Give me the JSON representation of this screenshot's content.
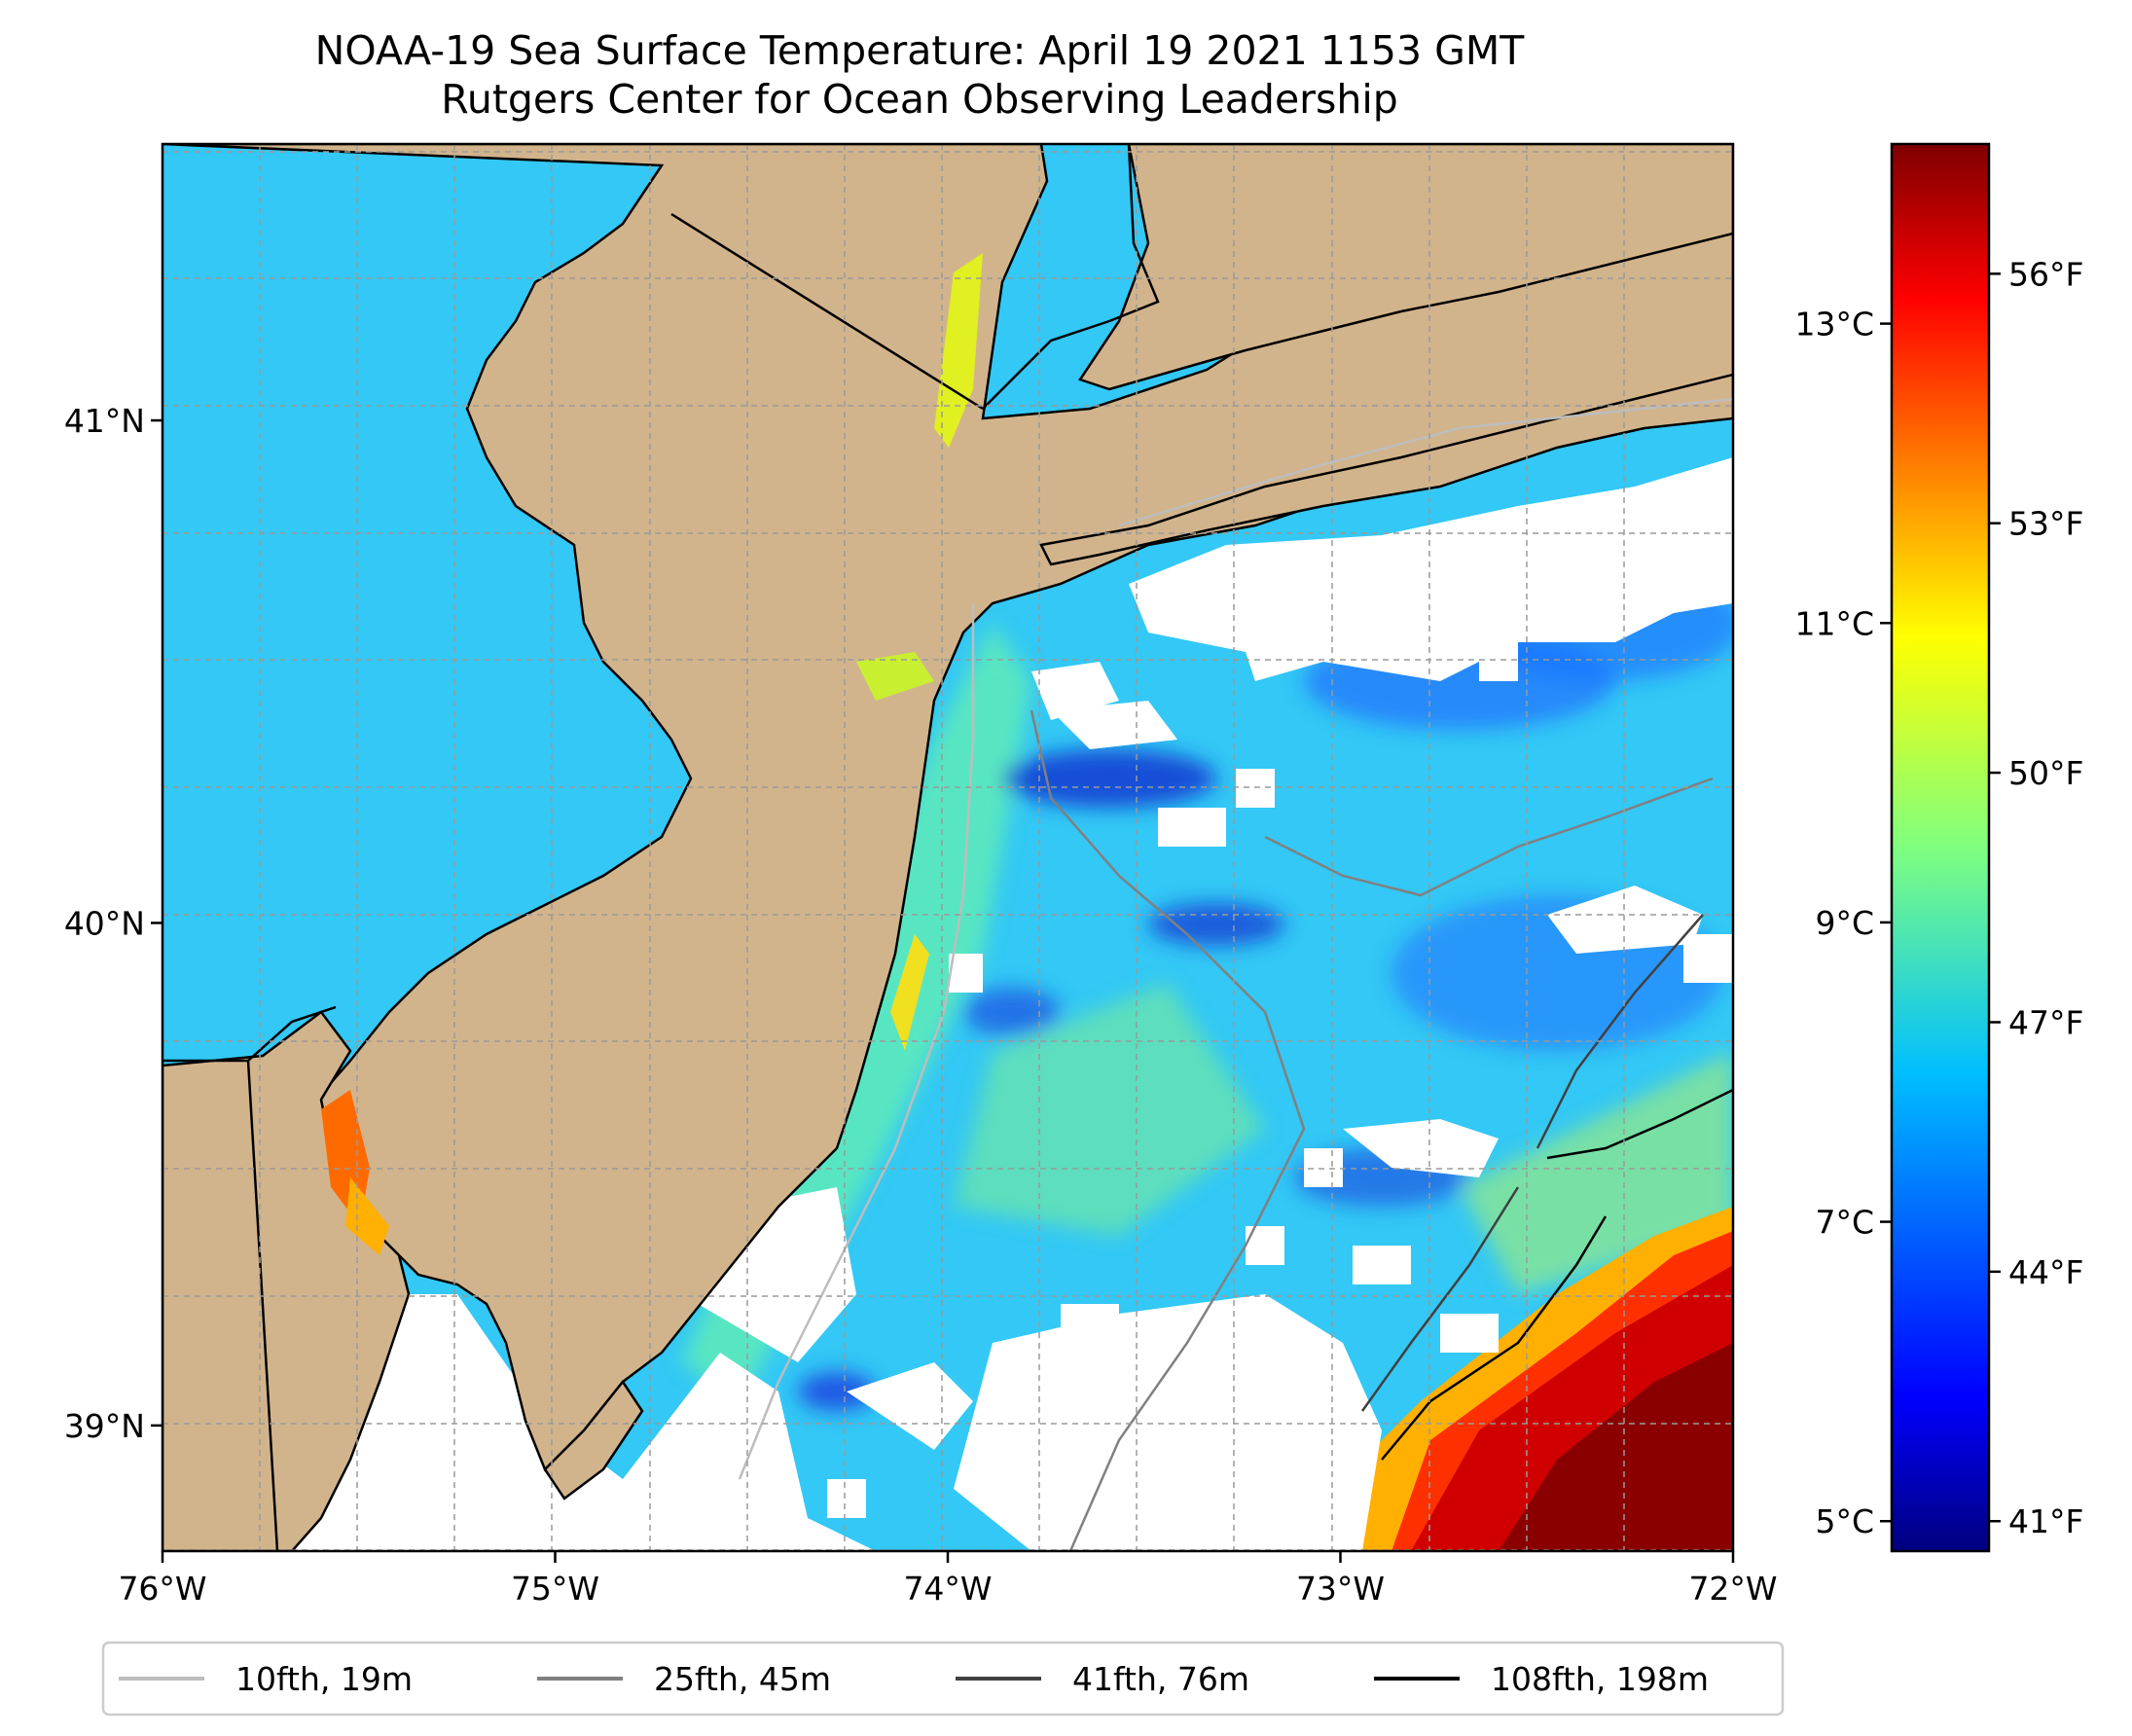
{
  "title": {
    "line1": "NOAA-19 Sea Surface Temperature: April 19 2021 1153 GMT",
    "line2": "Rutgers Center for Ocean Observing Leadership"
  },
  "map": {
    "lon_range": [
      -76,
      -72
    ],
    "lat_range": [
      38.75,
      41.55
    ],
    "lon_ticks": [
      {
        "value": -76,
        "label": "76°W"
      },
      {
        "value": -75,
        "label": "75°W"
      },
      {
        "value": -74,
        "label": "74°W"
      },
      {
        "value": -73,
        "label": "73°W"
      },
      {
        "value": -72,
        "label": "72°W"
      }
    ],
    "lat_ticks": [
      {
        "value": 39,
        "label": "39°N"
      },
      {
        "value": 40,
        "label": "40°N"
      },
      {
        "value": 41,
        "label": "41°N"
      }
    ],
    "gridlines": true,
    "land_color": "#d2b48c",
    "no_data_color": "#ffffff"
  },
  "colorbar": {
    "colormap": "jet",
    "celsius_range": [
      4.8,
      14.2
    ],
    "celsius_ticks": [
      {
        "value": 5,
        "label": "5°C"
      },
      {
        "value": 7,
        "label": "7°C"
      },
      {
        "value": 9,
        "label": "9°C"
      },
      {
        "value": 11,
        "label": "11°C"
      },
      {
        "value": 13,
        "label": "13°C"
      }
    ],
    "fahrenheit_ticks": [
      {
        "value": 41,
        "label": "41°F"
      },
      {
        "value": 44,
        "label": "44°F"
      },
      {
        "value": 47,
        "label": "47°F"
      },
      {
        "value": 50,
        "label": "50°F"
      },
      {
        "value": 53,
        "label": "53°F"
      },
      {
        "value": 56,
        "label": "56°F"
      }
    ]
  },
  "legend": {
    "placement": "bottom",
    "items": [
      {
        "label": "10fth, 19m",
        "color": "#bdbdbd"
      },
      {
        "label": "25fth, 45m",
        "color": "#808080"
      },
      {
        "label": "41fth, 76m",
        "color": "#404040"
      },
      {
        "label": "108fth, 198m",
        "color": "#000000"
      }
    ]
  }
}
